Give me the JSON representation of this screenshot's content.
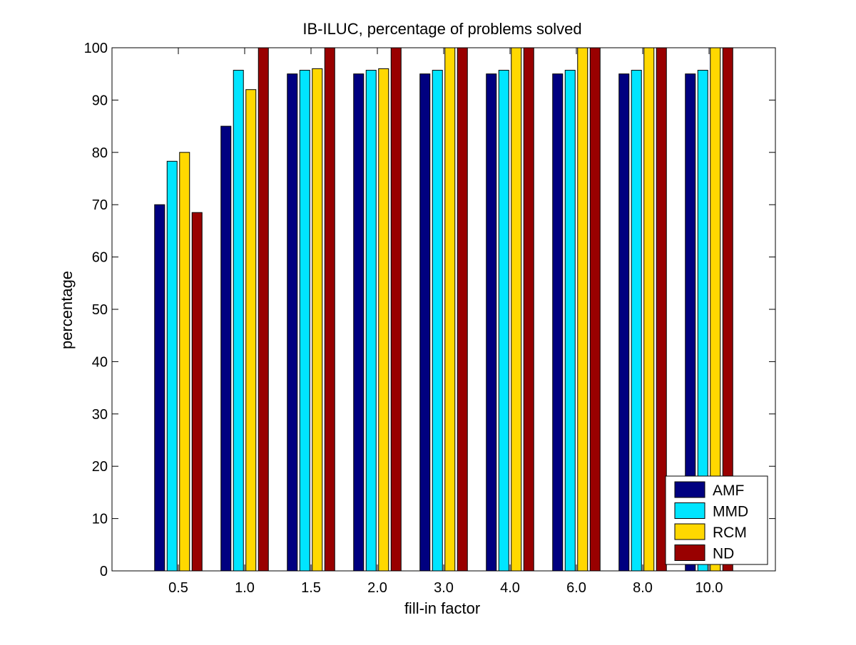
{
  "chart_data": {
    "type": "bar",
    "title": "IB-ILUC, percentage of problems solved",
    "xlabel": "fill-in factor",
    "ylabel": "percentage",
    "categories": [
      "0.5",
      "1.0",
      "1.5",
      "2.0",
      "3.0",
      "4.0",
      "6.0",
      "8.0",
      "10.0"
    ],
    "ylim": [
      0,
      100
    ],
    "yticks": [
      0,
      10,
      20,
      30,
      40,
      50,
      60,
      70,
      80,
      90,
      100
    ],
    "grid": false,
    "legend_position": "bottom-right",
    "series": [
      {
        "name": "AMF",
        "color": "#000080",
        "values": [
          70,
          85,
          95,
          95,
          95,
          95,
          95,
          95,
          95
        ]
      },
      {
        "name": "MMD",
        "color": "#00e5ff",
        "values": [
          78.3,
          95.7,
          95.7,
          95.7,
          95.7,
          95.7,
          95.7,
          95.7,
          95.7
        ]
      },
      {
        "name": "RCM",
        "color": "#ffd800",
        "values": [
          80,
          92,
          96,
          96,
          100,
          100,
          100,
          100,
          100
        ]
      },
      {
        "name": "ND",
        "color": "#990000",
        "values": [
          68.5,
          100,
          100,
          100,
          100,
          100,
          100,
          100,
          100
        ]
      }
    ]
  }
}
